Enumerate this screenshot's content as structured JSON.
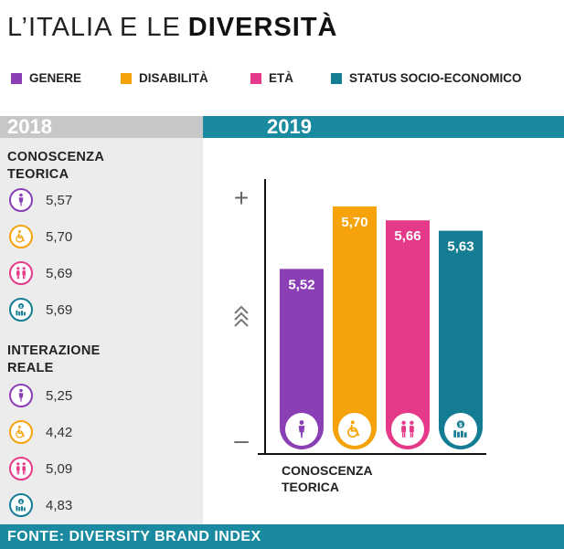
{
  "title": {
    "light": "L’ITALIA E LE",
    "bold": "DIVERSITÀ"
  },
  "legend": [
    {
      "label": "GENERE",
      "color": "#8a3fb5"
    },
    {
      "label": "DISABILITÀ",
      "color": "#f6a20b"
    },
    {
      "label": "ETÀ",
      "color": "#e43a89"
    },
    {
      "label": "STATUS SOCIO-ECONOMICO",
      "color": "#147d93"
    }
  ],
  "headers": {
    "y2018": "2018",
    "y2019": "2019"
  },
  "left_panel": {
    "sections": [
      {
        "title_lines": [
          "CONOSCENZA",
          "TEORICA"
        ],
        "rows": [
          {
            "icon": "person-icon",
            "color": "#8a3fb5",
            "value": "5,57"
          },
          {
            "icon": "wheelchair-icon",
            "color": "#f6a20b",
            "value": "5,70"
          },
          {
            "icon": "elderly-couple-icon",
            "color": "#e43a89",
            "value": "5,69"
          },
          {
            "icon": "money-bars-icon",
            "color": "#147d93",
            "value": "5,69"
          }
        ]
      },
      {
        "title_lines": [
          "INTERAZIONE",
          "REALE"
        ],
        "rows": [
          {
            "icon": "person-icon",
            "color": "#8a3fb5",
            "value": "5,25"
          },
          {
            "icon": "wheelchair-icon",
            "color": "#f6a20b",
            "value": "4,42"
          },
          {
            "icon": "elderly-couple-icon",
            "color": "#e43a89",
            "value": "5,09"
          },
          {
            "icon": "money-bars-icon",
            "color": "#147d93",
            "value": "4,83"
          }
        ]
      }
    ]
  },
  "chart_data": {
    "type": "bar",
    "categories": [
      "GENERE",
      "DISABILITÀ",
      "ETÀ",
      "STATUS SOCIO-ECONOMICO"
    ],
    "values": [
      5.52,
      5.7,
      5.66,
      5.63
    ],
    "value_labels": [
      "5,52",
      "5,70",
      "5,66",
      "5,63"
    ],
    "colors": [
      "#8a3fb5",
      "#f6a20b",
      "#e43a89",
      "#147d93"
    ],
    "icons": [
      "person-icon",
      "wheelchair-icon",
      "elderly-couple-icon",
      "money-bars-icon"
    ],
    "xlabel_lines": [
      "CONOSCENZA",
      "TEORICA"
    ],
    "y_top_label": "+",
    "y_bottom_label": "–",
    "grid": false
  },
  "footer": "FONTE: DIVERSITY BRAND INDEX"
}
